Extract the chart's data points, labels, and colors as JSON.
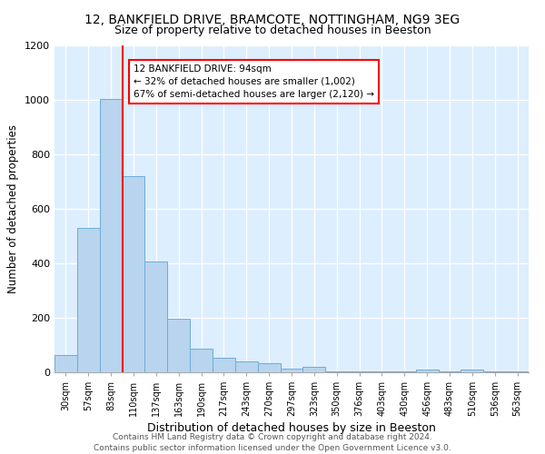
{
  "title1": "12, BANKFIELD DRIVE, BRAMCOTE, NOTTINGHAM, NG9 3EG",
  "title2": "Size of property relative to detached houses in Beeston",
  "xlabel": "Distribution of detached houses by size in Beeston",
  "ylabel": "Number of detached properties",
  "categories": [
    "30sqm",
    "57sqm",
    "83sqm",
    "110sqm",
    "137sqm",
    "163sqm",
    "190sqm",
    "217sqm",
    "243sqm",
    "270sqm",
    "297sqm",
    "323sqm",
    "350sqm",
    "376sqm",
    "403sqm",
    "430sqm",
    "456sqm",
    "483sqm",
    "510sqm",
    "536sqm",
    "563sqm"
  ],
  "values": [
    65,
    530,
    1005,
    720,
    408,
    197,
    88,
    55,
    40,
    32,
    15,
    20,
    5,
    3,
    3,
    3,
    10,
    2,
    10,
    2,
    2
  ],
  "bar_color": "#b8d4ee",
  "bar_edge_color": "#6aaed6",
  "red_line_x": 2.5,
  "annotation_text": "12 BANKFIELD DRIVE: 94sqm\n← 32% of detached houses are smaller (1,002)\n67% of semi-detached houses are larger (2,120) →",
  "annotation_box_color": "white",
  "annotation_box_edge_color": "red",
  "ylim": [
    0,
    1200
  ],
  "yticks": [
    0,
    200,
    400,
    600,
    800,
    1000,
    1200
  ],
  "bg_color": "#ddeeff",
  "footer": "Contains HM Land Registry data © Crown copyright and database right 2024.\nContains public sector information licensed under the Open Government Licence v3.0.",
  "title1_fontsize": 10,
  "title2_fontsize": 9,
  "xlabel_fontsize": 9,
  "ylabel_fontsize": 8.5,
  "footer_fontsize": 6.5,
  "annot_fontsize": 7.5
}
